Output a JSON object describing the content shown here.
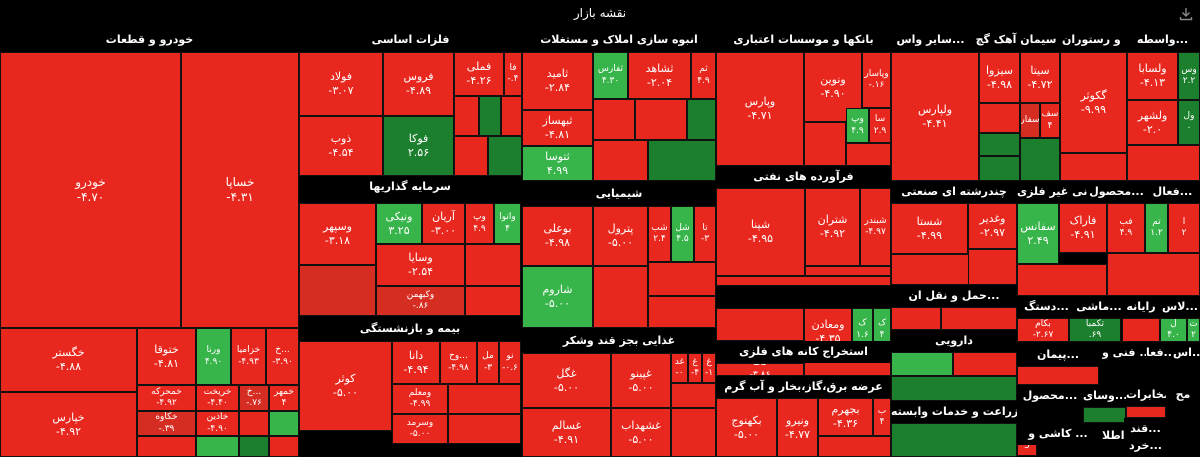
{
  "page": {
    "title": "نقشه بازار"
  },
  "icons": {
    "download": "download-icon"
  },
  "colors": {
    "neg_strong": "#e8281f",
    "neg_mid": "#d62d22",
    "neg_dark": "#b51d17",
    "pos_light": "#37b54a",
    "pos_dark": "#1b7f2e",
    "neutral": "#2a2a2a"
  },
  "chart_data": {
    "type": "treemap",
    "title": "نقشه بازار",
    "sectors": [
      {
        "name": "خودرو و قطعات"
      },
      {
        "name": "فلزات اساسی"
      },
      {
        "name": "انبوه سازی املاک و مستغلات"
      },
      {
        "name": "بانکها و موسسات اعتباری"
      },
      {
        "name": "سایر واس..."
      },
      {
        "name": "سیمان آهک گچ"
      },
      {
        "name": "هتل و رستوران"
      },
      {
        "name": "واسطه..."
      },
      {
        "name": "سرمایه گذاریها"
      },
      {
        "name": "شیمیایی"
      },
      {
        "name": "فرآورده های نفتی"
      },
      {
        "name": "چندرشته ای صنعتی"
      },
      {
        "name": "کانی غیر فلزی"
      },
      {
        "name": "محصول..."
      },
      {
        "name": "فعال..."
      },
      {
        "name": "حمل و نقل ان..."
      },
      {
        "name": "دستگ..."
      },
      {
        "name": "ماشی..."
      },
      {
        "name": "رایانه"
      },
      {
        "name": "لاس..."
      },
      {
        "name": "استخراج کانه های فلزی"
      },
      {
        "name": "بیمه و بازنشستگی"
      },
      {
        "name": "دارویی"
      },
      {
        "name": "فنی و ..."
      },
      {
        "name": "فعا..."
      },
      {
        "name": "اس..."
      },
      {
        "name": "پیمان..."
      },
      {
        "name": "غذایی بجز قند وشکر"
      },
      {
        "name": "عرضه برق،گاز،بخار و آب گرم"
      },
      {
        "name": "محصول..."
      },
      {
        "name": "وسای..."
      },
      {
        "name": "مخابرات"
      },
      {
        "name": "مح"
      },
      {
        "name": "زراعت و خدمات وابسته"
      },
      {
        "name": "اطلا..."
      },
      {
        "name": "قند..."
      },
      {
        "name": "کاشی و ..."
      },
      {
        "name": "خرد..."
      }
    ],
    "tiles": [
      {
        "symbol": "خودرو",
        "change": "-۴.۷۰",
        "value": -4.7
      },
      {
        "symbol": "خساپا",
        "change": "-۴.۳۱",
        "value": -4.31
      },
      {
        "symbol": "خگستر",
        "change": "-۴.۸۸",
        "value": -4.88
      },
      {
        "symbol": "خپارس",
        "change": "-۴.۹۲",
        "value": -4.92
      },
      {
        "symbol": "ختوقا",
        "change": "-۴.۸۱",
        "value": -4.81
      },
      {
        "symbol": "ورنا",
        "change": "۴.۹۰",
        "value": 4.9
      },
      {
        "symbol": "خزامیا",
        "change": "-۴.۹۳",
        "value": -4.93
      },
      {
        "symbol": "خ...",
        "change": "-۳.۹۰",
        "value": -3.9
      },
      {
        "symbol": "خمحرکه",
        "change": "-۴.۹۲",
        "value": -4.92
      },
      {
        "symbol": "خریخت",
        "change": "-۴.۴۰",
        "value": -4.4
      },
      {
        "symbol": "خ...",
        "change": "-.۷۶",
        "value": -0.76
      },
      {
        "symbol": "خمهر",
        "change": "۴",
        "value": 4
      },
      {
        "symbol": "خکاوه",
        "change": "-.۳۹",
        "value": -0.39
      },
      {
        "symbol": "خاذین",
        "change": "-۴.۹۰",
        "value": -4.9
      },
      {
        "symbol": "فولاد",
        "change": "-۳.۰۷",
        "value": -3.07
      },
      {
        "symbol": "فروس",
        "change": "-۴.۸۹",
        "value": -4.89
      },
      {
        "symbol": "فملی",
        "change": "-۴.۲۶",
        "value": -4.26
      },
      {
        "symbol": "فا",
        "change": "-.۴",
        "value": -0.4
      },
      {
        "symbol": "ذوب",
        "change": "-۴.۵۴",
        "value": -4.54
      },
      {
        "symbol": "فوکا",
        "change": "۲.۵۶",
        "value": 2.56
      },
      {
        "symbol": "ثامید",
        "change": "-۲.۸۴",
        "value": -2.84
      },
      {
        "symbol": "ثفارس",
        "change": "۴.۳۰",
        "value": 4.3
      },
      {
        "symbol": "ثشاهد",
        "change": "-۲.۰۴",
        "value": -2.04
      },
      {
        "symbol": "ثم",
        "change": "۴.۹",
        "value": 4.9
      },
      {
        "symbol": "ثبهساز",
        "change": "-۴.۸۱",
        "value": -4.81
      },
      {
        "symbol": "ثتوسا",
        "change": "۴.۹۹",
        "value": 4.99
      },
      {
        "symbol": "وپارس",
        "change": "-۴.۷۱",
        "value": -4.71
      },
      {
        "symbol": "ونوین",
        "change": "-۴.۹۰",
        "value": -4.9
      },
      {
        "symbol": "وپاسار",
        "change": "-.۱۶",
        "value": -0.16
      },
      {
        "symbol": "وپ",
        "change": "۴.۹",
        "value": 4.9
      },
      {
        "symbol": "سا",
        "change": "۲.۹",
        "value": 2.9
      },
      {
        "symbol": "ولپارس",
        "change": "-۴.۴۱",
        "value": -4.41
      },
      {
        "symbol": "سیزوا",
        "change": "-۴.۹۸",
        "value": -4.98
      },
      {
        "symbol": "سیتا",
        "change": "-۴.۷۲",
        "value": -4.72
      },
      {
        "symbol": "سفار",
        "change": "",
        "value": null
      },
      {
        "symbol": "سف",
        "change": "۴",
        "value": 4
      },
      {
        "symbol": "گکوثر",
        "change": "-۹.۹۹",
        "value": -9.99
      },
      {
        "symbol": "ولسابا",
        "change": "-۴.۱۳",
        "value": -4.13
      },
      {
        "symbol": "وس",
        "change": "۲.۲",
        "value": 2.2
      },
      {
        "symbol": "ولشهر",
        "change": "-۲.۰",
        "value": -2.0
      },
      {
        "symbol": "ول",
        "change": "۰",
        "value": 0
      },
      {
        "symbol": "وسپهر",
        "change": "-۳.۱۸",
        "value": -3.18
      },
      {
        "symbol": "ونیکی",
        "change": "۳.۲۵",
        "value": 3.25
      },
      {
        "symbol": "آریان",
        "change": "-۳.۰۰",
        "value": -3.0
      },
      {
        "symbol": "وپ",
        "change": "۴.۹",
        "value": 4.9
      },
      {
        "symbol": "واتوا",
        "change": "۴",
        "value": 4
      },
      {
        "symbol": "وسایا",
        "change": "-۲.۵۴",
        "value": -2.54
      },
      {
        "symbol": "وکبهمن",
        "change": "-.۸۶",
        "value": -0.86
      },
      {
        "symbol": "بوعلی",
        "change": "-۴.۹۸",
        "value": -4.98
      },
      {
        "symbol": "پترول",
        "change": "-۵.۰۰",
        "value": -5.0
      },
      {
        "symbol": "شب",
        "change": "۲.۴",
        "value": 2.4
      },
      {
        "symbol": "شل",
        "change": "۴.۵",
        "value": 4.5
      },
      {
        "symbol": "تا",
        "change": "-۳",
        "value": -3
      },
      {
        "symbol": "شاروم",
        "change": "-۵.۰۰",
        "value": -5.0
      },
      {
        "symbol": "شگویا",
        "change": "-۲.۹۸",
        "value": -2.98
      },
      {
        "symbol": "شپنا",
        "change": "-۴.۹۵",
        "value": -4.95
      },
      {
        "symbol": "شتران",
        "change": "-۴.۹۲",
        "value": -4.92
      },
      {
        "symbol": "شبندر",
        "change": "-۴.۹۷",
        "value": -4.97
      },
      {
        "symbol": "شستا",
        "change": "-۴.۹۹",
        "value": -4.99
      },
      {
        "symbol": "وغدیر",
        "change": "-۲.۹۷",
        "value": -2.97
      },
      {
        "symbol": "سفانس",
        "change": "۲.۴۹",
        "value": 2.49
      },
      {
        "symbol": "فاراک",
        "change": "-۴.۹۱",
        "value": -4.91
      },
      {
        "symbol": "فب",
        "change": "۴.۹",
        "value": 4.9
      },
      {
        "symbol": "تم",
        "change": "۱.۲",
        "value": 1.2
      },
      {
        "symbol": "ا",
        "change": "۲",
        "value": 2
      },
      {
        "symbol": "حریل",
        "change": "-۵.۰۰",
        "value": -5.0
      },
      {
        "symbol": "بکام",
        "change": "-۲.۶۷",
        "value": -2.67
      },
      {
        "symbol": "تکمبا",
        "change": ".۶۹",
        "value": 0.69
      },
      {
        "symbol": "ل",
        "change": "۴.۰",
        "value": 4.0
      },
      {
        "symbol": "ت",
        "change": "۲",
        "value": 2
      },
      {
        "symbol": "کاما",
        "change": "-۳.۸۶",
        "value": -3.86
      },
      {
        "symbol": "ومعادن",
        "change": "-۴.۳۵",
        "value": -4.35
      },
      {
        "symbol": "ک",
        "change": "۱.۶",
        "value": 1.6
      },
      {
        "symbol": "ک",
        "change": "۴",
        "value": 4
      },
      {
        "symbol": "کوثر",
        "change": "-۵.۰۰",
        "value": -5.0
      },
      {
        "symbol": "دانا",
        "change": "-۴.۹۴",
        "value": -4.94
      },
      {
        "symbol": "وح...",
        "change": "-۴.۹۸",
        "value": -4.98
      },
      {
        "symbol": "مل",
        "change": "-۳",
        "value": -3
      },
      {
        "symbol": "نو",
        "change": "-۰.۶",
        "value": -0.6
      },
      {
        "symbol": "ومعلم",
        "change": "-۴.۹۹",
        "value": -4.99
      },
      {
        "symbol": "وسرمد",
        "change": "-۵.۰۰",
        "value": -5.0
      },
      {
        "symbol": "غگل",
        "change": "-۵.۰۰",
        "value": -5.0
      },
      {
        "symbol": "غپینو",
        "change": "-۵.۰۰",
        "value": -5.0
      },
      {
        "symbol": "غد",
        "change": "-۰",
        "value": 0
      },
      {
        "symbol": "غ",
        "change": "-۴",
        "value": -4
      },
      {
        "symbol": "غ",
        "change": "-۱",
        "value": -1
      },
      {
        "symbol": "غسالم",
        "change": "-۴.۹۱",
        "value": -4.91
      },
      {
        "symbol": "غشهداب",
        "change": "-۵.۰۰",
        "value": -5.0
      },
      {
        "symbol": "بکهنوج",
        "change": "-۵.۰۰",
        "value": -5.0
      },
      {
        "symbol": "ونیرو",
        "change": "-۴.۷۷",
        "value": -4.77
      },
      {
        "symbol": "بجهرم",
        "change": "-۴.۳۶",
        "value": -4.36
      },
      {
        "symbol": "ب",
        "change": "۴",
        "value": 4
      },
      {
        "symbol": "5",
        "change": "",
        "value": null
      }
    ]
  }
}
